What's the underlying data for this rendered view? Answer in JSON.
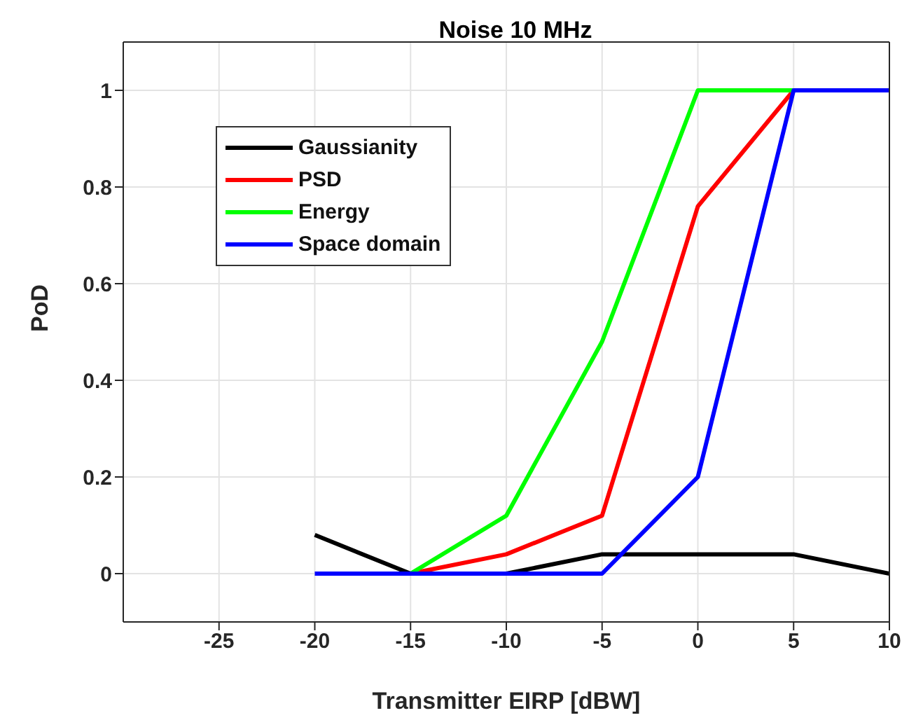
{
  "chart_data": {
    "type": "line",
    "title": "Noise 10 MHz",
    "xlabel": "Transmitter EIRP [dBW]",
    "ylabel": "PoD",
    "x": [
      -20,
      -15,
      -10,
      -5,
      0,
      5,
      10
    ],
    "series": [
      {
        "name": "Gaussianity",
        "color": "#000000",
        "values": [
          0.08,
          0,
          0,
          0.04,
          0.04,
          0.04,
          0
        ]
      },
      {
        "name": "PSD",
        "color": "#ff0000",
        "values": [
          null,
          0,
          0.04,
          0.12,
          0.76,
          1,
          null
        ]
      },
      {
        "name": "Energy",
        "color": "#00ff00",
        "values": [
          null,
          0,
          0.12,
          0.48,
          1,
          1,
          null
        ]
      },
      {
        "name": "Space domain",
        "color": "#0000ff",
        "values": [
          0,
          0,
          0,
          0,
          0.2,
          1,
          1
        ]
      }
    ],
    "xlim": [
      -30,
      10
    ],
    "xticks": [
      -25,
      -20,
      -15,
      -10,
      -5,
      0,
      5,
      10
    ],
    "ylim": [
      -0.1,
      1.1
    ],
    "yticks": [
      0,
      0.2,
      0.4,
      0.6,
      0.8,
      1
    ],
    "grid": true,
    "legend": "top left",
    "marker": "none",
    "line_style": "solid"
  }
}
